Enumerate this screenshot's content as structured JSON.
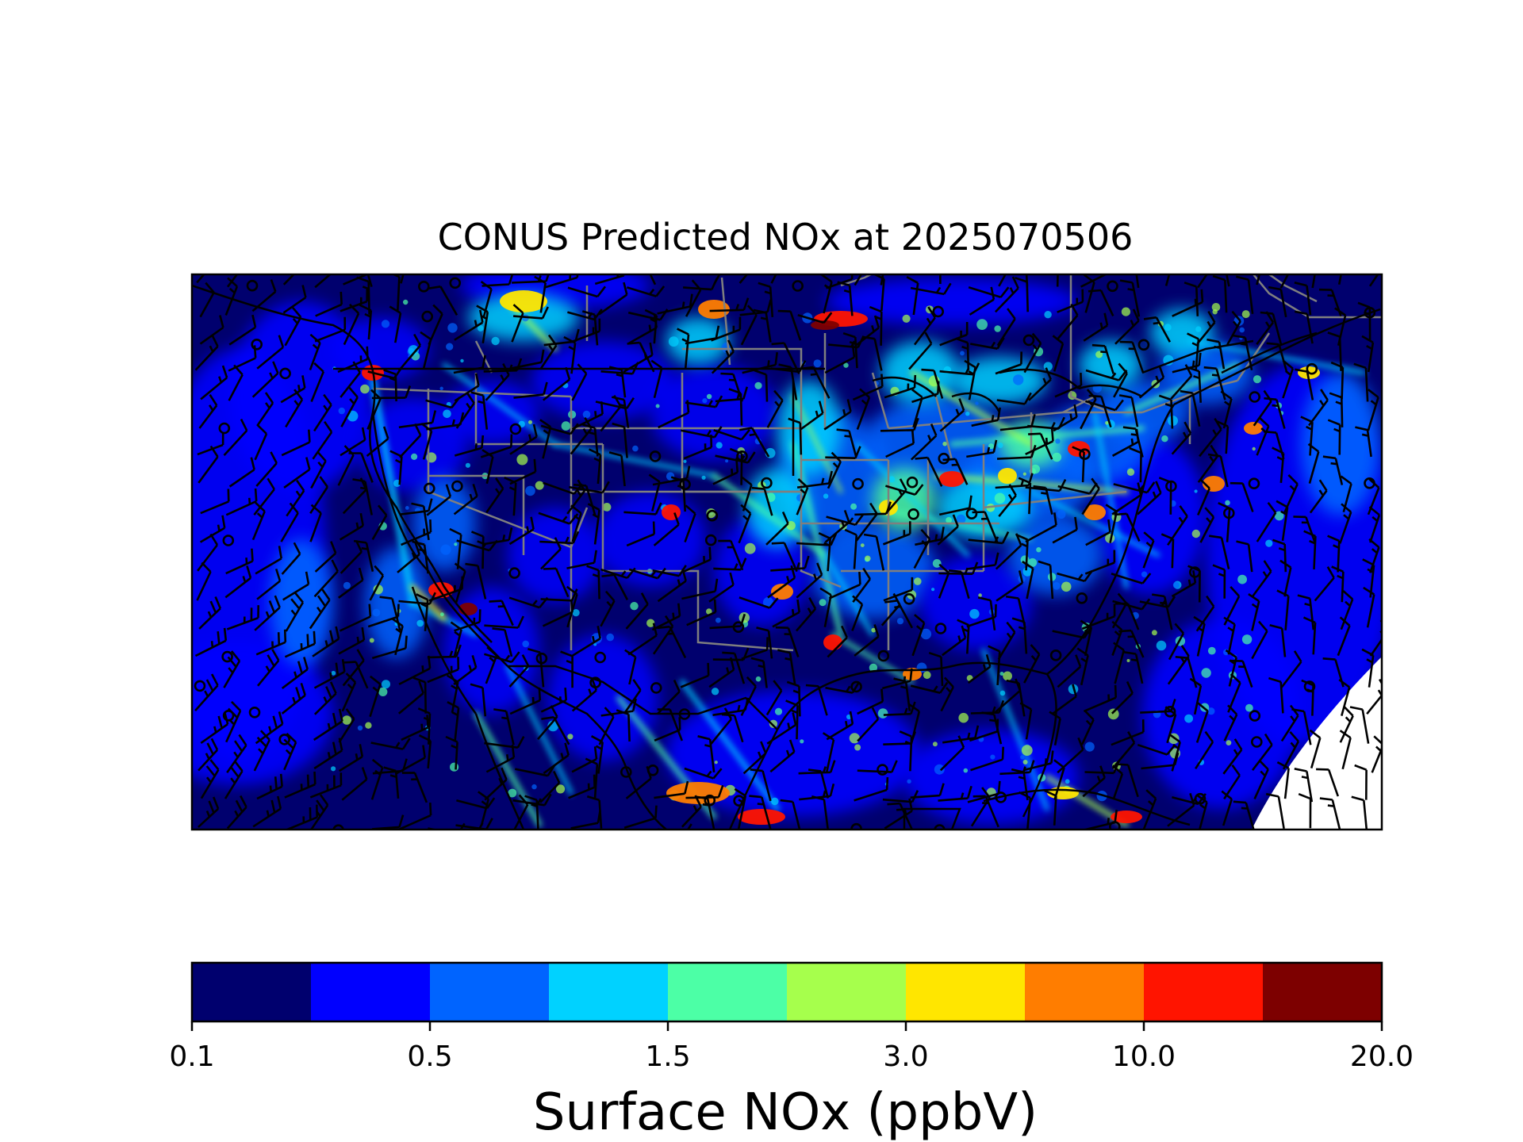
{
  "figure": {
    "title": "CONUS Predicted NOx at 2025070506"
  },
  "colorbar": {
    "label": "Surface NOx (ppbV)",
    "tick_labels": [
      "0.1",
      "0.5",
      "1.5",
      "3.0",
      "10.0",
      "20.0"
    ],
    "bin_colors": [
      "#00006e",
      "#0000ff",
      "#0064ff",
      "#00d2ff",
      "#4cffa6",
      "#a6ff4c",
      "#ffe600",
      "#ff7d00",
      "#ff1400",
      "#7d0000"
    ]
  },
  "map": {
    "type": "heatmap",
    "variable": "Surface NOx",
    "units": "ppbV",
    "overlays": [
      "wind-barbs",
      "state-boundaries",
      "coastlines",
      "country-borders"
    ],
    "background_color": "#00006e"
  }
}
